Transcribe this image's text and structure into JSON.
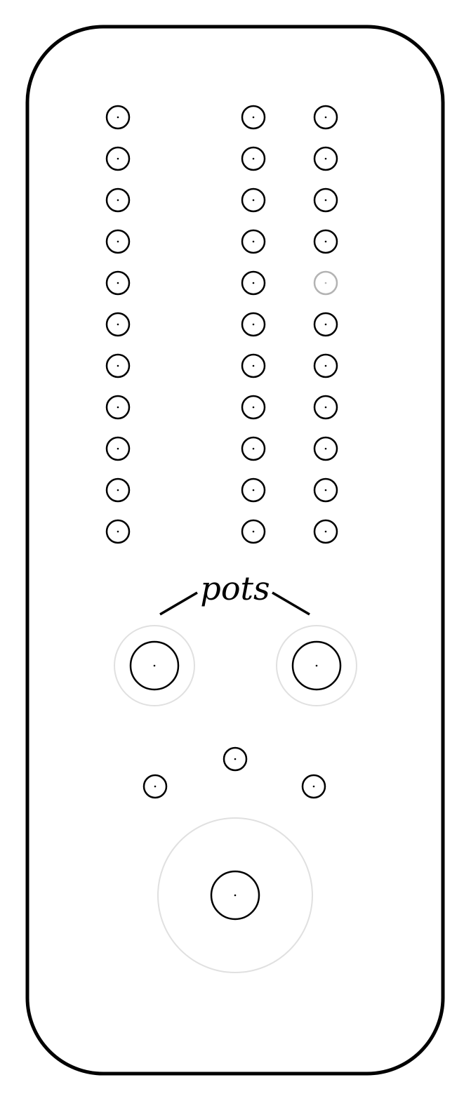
{
  "diagram": {
    "label": "pots",
    "colors": {
      "outline": "#000000",
      "hole": "#000000",
      "hole_dimmed": "#b3b3b3",
      "guide_ring": "#e0e0e0",
      "background": "#ffffff"
    },
    "hole_columns": [
      {
        "name": "left",
        "count": 11,
        "dimmed_rows": []
      },
      {
        "name": "middle",
        "count": 11,
        "dimmed_rows": []
      },
      {
        "name": "right",
        "count": 11,
        "dimmed_rows": [
          4
        ]
      }
    ],
    "pot_count": 2,
    "small_hole_count": 3,
    "large_control_count": 1
  }
}
